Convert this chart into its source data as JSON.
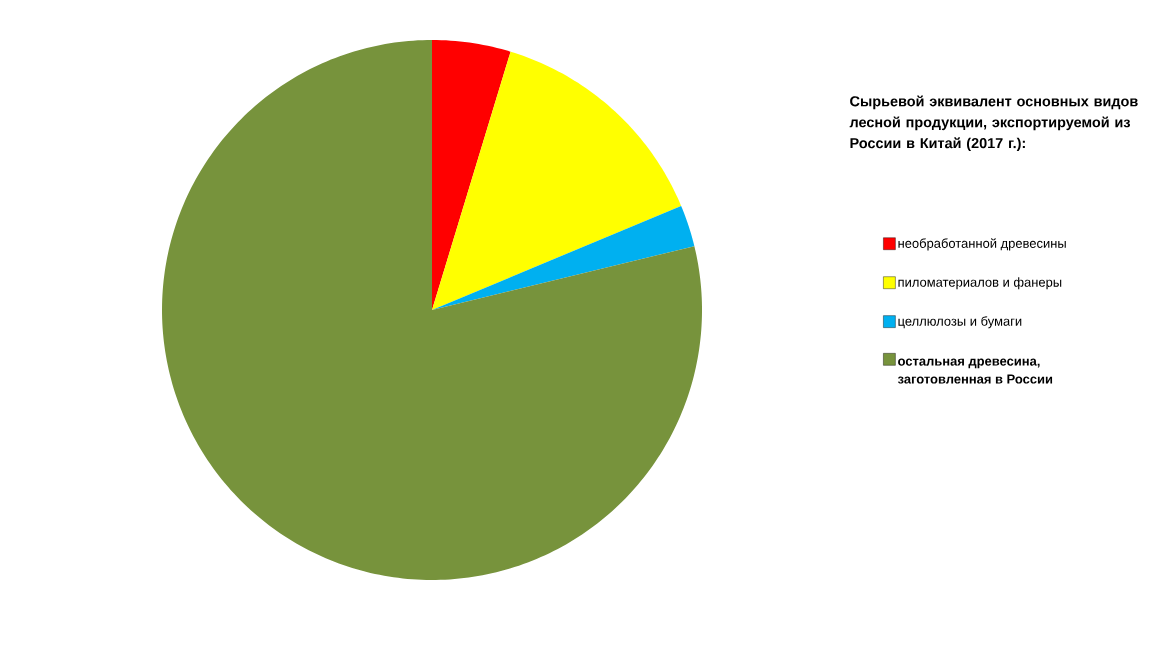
{
  "chart_data": {
    "type": "pie",
    "title": "Сырьевой эквивалент основных видов лесной продукции, экспортируемой из России в Китай (2017 г.):",
    "categories": [
      "необработанной древесины",
      "пиломатериалов и фанеры",
      "целлюлозы и бумаги",
      "остальная древесина, заготовленная в России"
    ],
    "values": [
      4.7,
      14,
      2.5,
      78.8
    ],
    "colors": [
      "#ff0000",
      "#ffff00",
      "#00b0f0",
      "#77933c"
    ],
    "legend": "right"
  }
}
